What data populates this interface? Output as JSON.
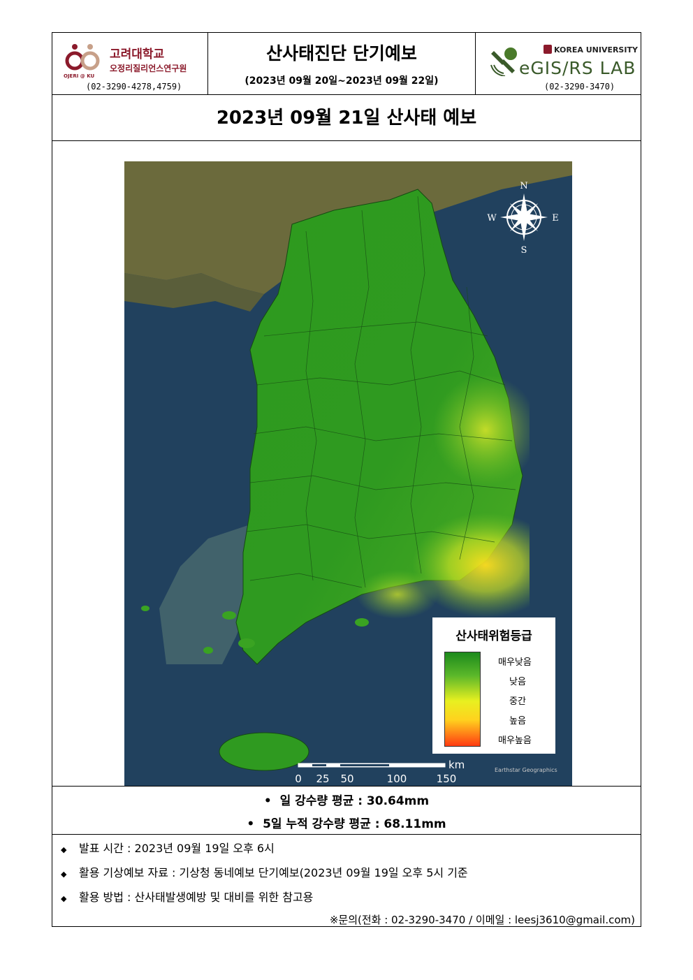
{
  "header": {
    "left": {
      "name": "고려대학교",
      "institute": "오정리질리언스연구원",
      "tag": "OJERI @ KU",
      "phone": "(02-3290-4278,4759)"
    },
    "center": {
      "title": "산사태진단 단기예보",
      "period": "(2023년 09월 20일~2023년 09월 22일)"
    },
    "right": {
      "university": "KOREA UNIVERSITY",
      "lab": "eGIS/RS LAB",
      "phone": "(02-3290-3470)"
    }
  },
  "forecast_title": "2023년 09월 21일 산사태 예보",
  "map": {
    "compass": {
      "n": "N",
      "s": "S",
      "e": "E",
      "w": "W"
    },
    "legend": {
      "title": "산사태위험등급",
      "levels": [
        "매우낮음",
        "낮음",
        "중간",
        "높음",
        "매우높음"
      ]
    },
    "scale": {
      "unit": "km",
      "ticks": [
        "0",
        "25",
        "50",
        "100",
        "150"
      ]
    },
    "credit": "Earthstar Geographics",
    "colors": {
      "very_low": "#1c8a1c",
      "low": "#5cb82a",
      "medium": "#e8f020",
      "high": "#ffd21e",
      "very_high": "#ff3b12",
      "sea": "#1f3f5c"
    }
  },
  "rainfall": {
    "daily": "일 강수량 평균 : 30.64mm",
    "five_day": "5일 누적 강수량 평균 : 68.11mm"
  },
  "info": {
    "issued": "발표 시간 : 2023년 09월 19일 오후 6시",
    "source": "활용 기상예보 자료 : 기상청 동네예보 단기예보(2023년 09월 19일 오후 5시 기준",
    "usage": "활용 방법 : 산사태발생예방 및 대비를 위한 참고용",
    "contact": "※문의(전화 : 02-3290-3470 / 이메일 : leesj3610@gmail.com)"
  }
}
